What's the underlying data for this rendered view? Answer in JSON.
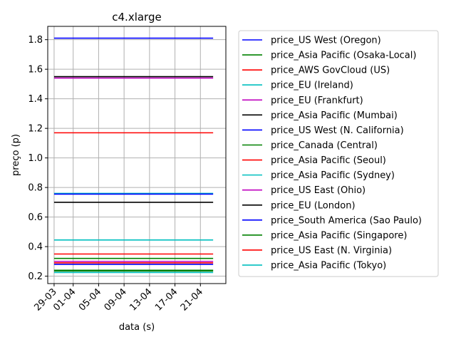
{
  "chart_data": {
    "type": "line",
    "title": "c4.xlarge",
    "xlabel": "data (s)",
    "ylabel": "preço (p)",
    "ylim": [
      0.15,
      1.89
    ],
    "yticks": [
      0.2,
      0.4,
      0.6,
      0.8,
      1.0,
      1.2,
      1.4,
      1.6,
      1.8
    ],
    "ytick_labels": [
      "0.2",
      "0.4",
      "0.6",
      "0.8",
      "1.0",
      "1.2",
      "1.4",
      "1.6",
      "1.8"
    ],
    "x": [
      "29-03",
      "23-04"
    ],
    "xlim": [
      "28-03",
      "25-04"
    ],
    "xticks": [
      "29-03",
      "01-04",
      "05-04",
      "09-04",
      "13-04",
      "17-04",
      "21-04"
    ],
    "grid": true,
    "legend_position": "outside-right",
    "series": [
      {
        "name": "price_US West (Oregon)",
        "color": "#0000ff",
        "values": [
          1.81,
          1.81
        ]
      },
      {
        "name": "price_Asia Pacific (Osaka-Local)",
        "color": "#008000",
        "values": [
          0.32,
          0.32
        ]
      },
      {
        "name": "price_AWS GovCloud (US)",
        "color": "#ff0000",
        "values": [
          1.17,
          1.17
        ]
      },
      {
        "name": "price_EU (Ireland)",
        "color": "#00bfbf",
        "values": [
          0.76,
          0.76
        ]
      },
      {
        "name": "price_EU (Frankfurt)",
        "color": "#bf00bf",
        "values": [
          1.54,
          1.54
        ]
      },
      {
        "name": "price_Asia Pacific (Mumbai)",
        "color": "#000000",
        "values": [
          1.55,
          1.55
        ]
      },
      {
        "name": "price_US West (N. California)",
        "color": "#0000ff",
        "values": [
          0.28,
          0.28
        ]
      },
      {
        "name": "price_Canada (Central)",
        "color": "#008000",
        "values": [
          0.24,
          0.24
        ]
      },
      {
        "name": "price_Asia Pacific (Seoul)",
        "color": "#ff0000",
        "values": [
          0.35,
          0.35
        ]
      },
      {
        "name": "price_Asia Pacific (Sydney)",
        "color": "#00bfbf",
        "values": [
          0.445,
          0.445
        ]
      },
      {
        "name": "price_US East (Ohio)",
        "color": "#bf00bf",
        "values": [
          0.3,
          0.3
        ]
      },
      {
        "name": "price_EU (London)",
        "color": "#000000",
        "values": [
          0.7,
          0.7
        ]
      },
      {
        "name": "price_South America (Sao Paulo)",
        "color": "#0000ff",
        "values": [
          0.755,
          0.755
        ]
      },
      {
        "name": "price_Asia Pacific (Singapore)",
        "color": "#008000",
        "values": [
          0.235,
          0.235
        ]
      },
      {
        "name": "price_US East (N. Virginia)",
        "color": "#ff0000",
        "values": [
          0.29,
          0.29
        ]
      },
      {
        "name": "price_Asia Pacific (Tokyo)",
        "color": "#00bfbf",
        "values": [
          0.225,
          0.225
        ]
      }
    ]
  }
}
